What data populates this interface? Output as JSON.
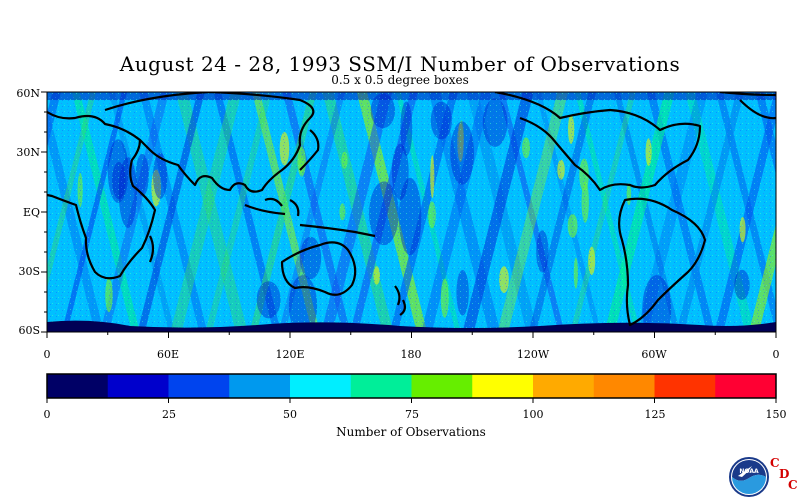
{
  "title": "August 24 - 28, 1993 SSM/I Number of Observations",
  "subtitle": "0.5 x 0.5 degree boxes",
  "map": {
    "lat_labels": [
      "60N",
      "30N",
      "EQ",
      "30S",
      "60S"
    ],
    "lon_labels": [
      "0",
      "60E",
      "120E",
      "180",
      "120W",
      "60W",
      "0"
    ],
    "land_color": "#000000",
    "ocean_base_color": "#00c0ff"
  },
  "colorbar": {
    "title": "Number of Observations",
    "tick_labels": [
      "0",
      "25",
      "50",
      "75",
      "100",
      "125",
      "150"
    ],
    "colors": [
      "#000066",
      "#0000cc",
      "#0044ee",
      "#0099ee",
      "#00eeff",
      "#00ee99",
      "#66ee00",
      "#ffff00",
      "#ffaa00",
      "#ff8800",
      "#ff3300",
      "#ff0033"
    ]
  },
  "logo": {
    "name": "NOAA",
    "letters": [
      "C",
      "D",
      "C"
    ]
  }
}
